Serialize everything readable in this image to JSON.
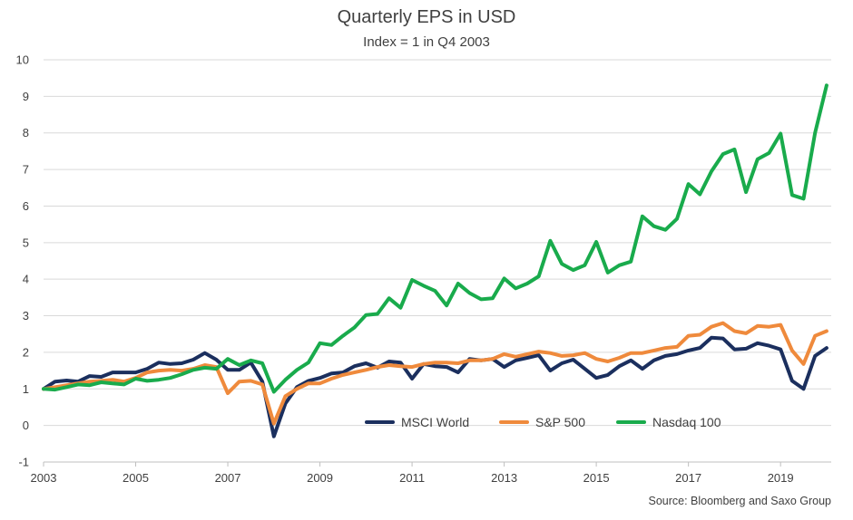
{
  "title": "Quarterly EPS in USD",
  "subtitle": "Index = 1 in Q4 2003",
  "source": "Source: Bloomberg and Saxo Group",
  "chart_data": {
    "type": "line",
    "title": "Quarterly EPS in USD",
    "subtitle": "Index = 1 in Q4 2003",
    "xlabel": "",
    "ylabel": "",
    "xlim": [
      2003,
      2020.1
    ],
    "ylim": [
      -1,
      10
    ],
    "x_ticks": [
      "2003",
      "2005",
      "2007",
      "2009",
      "2011",
      "2013",
      "2015",
      "2017",
      "2019"
    ],
    "y_ticks": [
      "-1",
      "0",
      "1",
      "2",
      "3",
      "4",
      "5",
      "6",
      "7",
      "8",
      "9",
      "10"
    ],
    "grid": "horizontal",
    "legend_position": "bottom-center",
    "x": [
      2003.0,
      2003.25,
      2003.5,
      2003.75,
      2004.0,
      2004.25,
      2004.5,
      2004.75,
      2005.0,
      2005.25,
      2005.5,
      2005.75,
      2006.0,
      2006.25,
      2006.5,
      2006.75,
      2007.0,
      2007.25,
      2007.5,
      2007.75,
      2008.0,
      2008.25,
      2008.5,
      2008.75,
      2009.0,
      2009.25,
      2009.5,
      2009.75,
      2010.0,
      2010.25,
      2010.5,
      2010.75,
      2011.0,
      2011.25,
      2011.5,
      2011.75,
      2012.0,
      2012.25,
      2012.5,
      2012.75,
      2013.0,
      2013.25,
      2013.5,
      2013.75,
      2014.0,
      2014.25,
      2014.5,
      2014.75,
      2015.0,
      2015.25,
      2015.5,
      2015.75,
      2016.0,
      2016.25,
      2016.5,
      2016.75,
      2017.0,
      2017.25,
      2017.5,
      2017.75,
      2018.0,
      2018.25,
      2018.5,
      2018.75,
      2019.0,
      2019.25,
      2019.5,
      2019.75,
      2020.0
    ],
    "series": [
      {
        "name": "MSCI World",
        "color": "#1b2f5e",
        "values": [
          1.0,
          1.2,
          1.23,
          1.2,
          1.35,
          1.33,
          1.45,
          1.45,
          1.45,
          1.55,
          1.72,
          1.68,
          1.7,
          1.8,
          1.98,
          1.8,
          1.52,
          1.52,
          1.72,
          1.2,
          -0.3,
          0.6,
          1.05,
          1.22,
          1.3,
          1.42,
          1.45,
          1.62,
          1.7,
          1.58,
          1.75,
          1.72,
          1.28,
          1.68,
          1.62,
          1.6,
          1.45,
          1.82,
          1.78,
          1.82,
          1.6,
          1.78,
          1.85,
          1.92,
          1.5,
          1.7,
          1.8,
          1.55,
          1.3,
          1.38,
          1.62,
          1.78,
          1.55,
          1.78,
          1.9,
          1.95,
          2.05,
          2.12,
          2.4,
          2.38,
          2.08,
          2.1,
          2.25,
          2.18,
          2.08,
          1.22,
          1.0,
          1.9,
          2.12
        ]
      },
      {
        "name": "S&P 500",
        "color": "#ef8a3c",
        "values": [
          1.0,
          1.05,
          1.1,
          1.15,
          1.2,
          1.22,
          1.25,
          1.2,
          1.3,
          1.45,
          1.5,
          1.52,
          1.5,
          1.55,
          1.65,
          1.6,
          0.88,
          1.2,
          1.22,
          1.12,
          0.05,
          0.8,
          1.0,
          1.15,
          1.15,
          1.28,
          1.38,
          1.45,
          1.52,
          1.6,
          1.65,
          1.62,
          1.6,
          1.68,
          1.72,
          1.72,
          1.7,
          1.78,
          1.78,
          1.82,
          1.95,
          1.88,
          1.95,
          2.02,
          1.98,
          1.9,
          1.92,
          1.98,
          1.82,
          1.75,
          1.85,
          1.98,
          1.98,
          2.05,
          2.12,
          2.15,
          2.45,
          2.48,
          2.7,
          2.8,
          2.58,
          2.52,
          2.72,
          2.7,
          2.75,
          2.05,
          1.68,
          2.45,
          2.58
        ]
      },
      {
        "name": "Nasdaq 100",
        "color": "#19ab4c",
        "values": [
          1.0,
          0.98,
          1.05,
          1.12,
          1.1,
          1.18,
          1.15,
          1.12,
          1.28,
          1.22,
          1.25,
          1.3,
          1.4,
          1.52,
          1.58,
          1.55,
          1.82,
          1.65,
          1.78,
          1.7,
          0.92,
          1.25,
          1.52,
          1.72,
          2.25,
          2.2,
          2.45,
          2.68,
          3.02,
          3.05,
          3.48,
          3.22,
          3.98,
          3.82,
          3.68,
          3.28,
          3.88,
          3.62,
          3.45,
          3.48,
          4.02,
          3.75,
          3.88,
          4.08,
          5.05,
          4.42,
          4.25,
          4.38,
          5.02,
          4.18,
          4.38,
          4.48,
          5.72,
          5.45,
          5.35,
          5.65,
          6.6,
          6.32,
          6.95,
          7.42,
          7.55,
          6.38,
          7.28,
          7.45,
          7.98,
          6.3,
          6.2,
          8.0,
          9.3
        ]
      }
    ]
  }
}
